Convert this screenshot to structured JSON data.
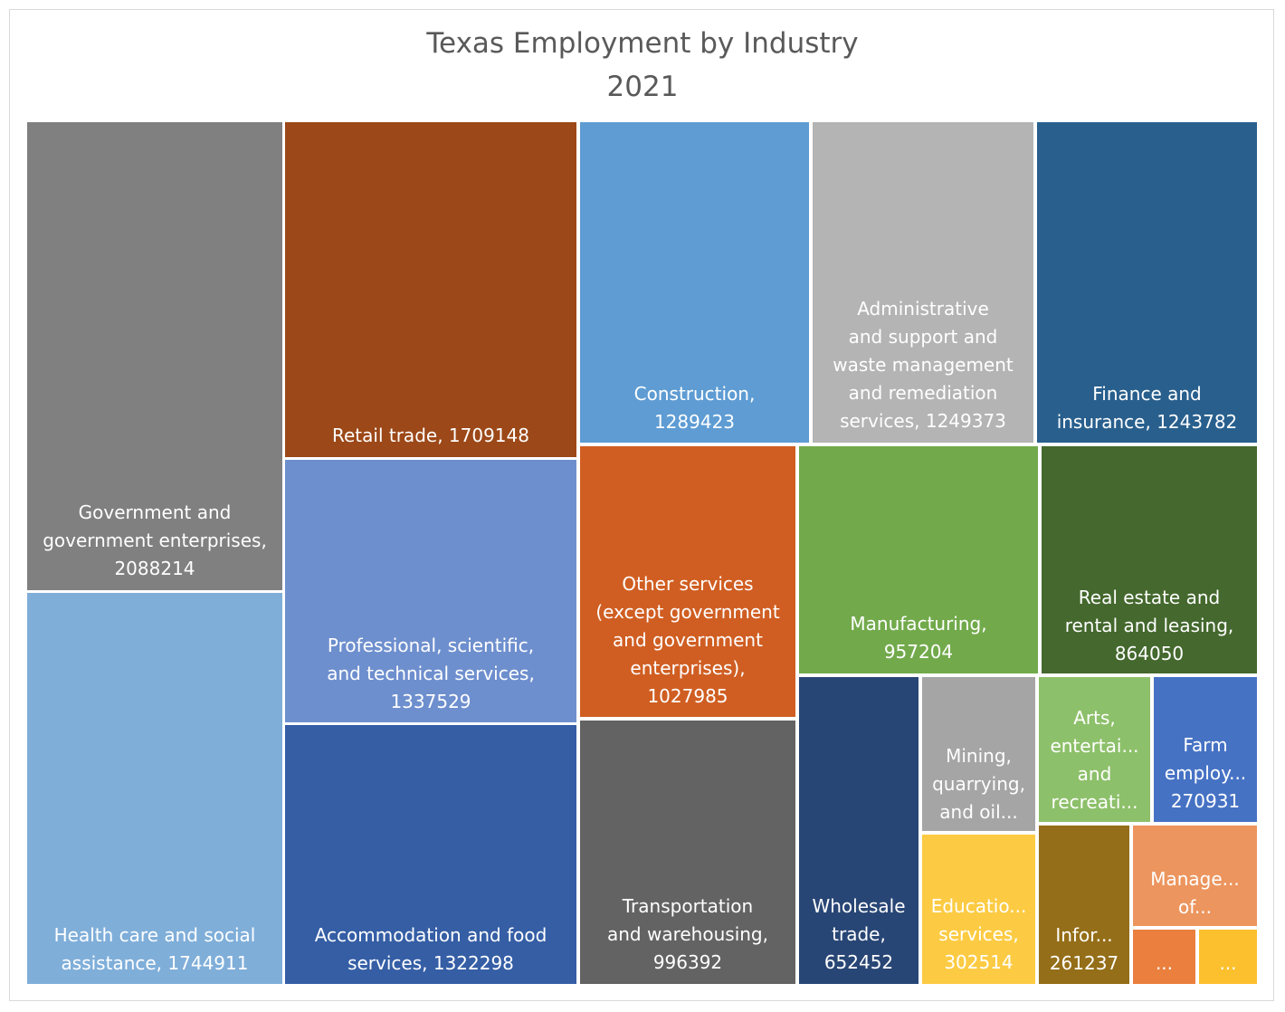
{
  "chart_data": {
    "type": "treemap",
    "title": "Texas Employment by Industry",
    "subtitle": "2021",
    "items": [
      {
        "name": "Government and government enterprises",
        "value": 2088214,
        "color": "#808080",
        "label": [
          "Government and",
          "government enterprises,",
          "2088214"
        ]
      },
      {
        "name": "Health care and social assistance",
        "value": 1744911,
        "color": "#7FAED9",
        "label": [
          "Health care and social",
          "assistance, 1744911"
        ]
      },
      {
        "name": "Retail trade",
        "value": 1709148,
        "color": "#9C4818",
        "label": [
          "Retail trade, 1709148"
        ]
      },
      {
        "name": "Professional, scientific, and technical services",
        "value": 1337529,
        "color": "#6E8FCE",
        "label": [
          "Professional, scientific,",
          "and technical services,",
          "1337529"
        ]
      },
      {
        "name": "Accommodation and food services",
        "value": 1322298,
        "color": "#355EA5",
        "label": [
          "Accommodation and food",
          "services, 1322298"
        ]
      },
      {
        "name": "Construction",
        "value": 1289423,
        "color": "#5E9CD3",
        "label": [
          "Construction,",
          "1289423"
        ]
      },
      {
        "name": "Administrative and support and waste management and remediation services",
        "value": 1249373,
        "color": "#B4B4B4",
        "label": [
          "Administrative",
          "and support and",
          "waste management",
          "and remediation",
          "services, 1249373"
        ]
      },
      {
        "name": "Finance and insurance",
        "value": 1243782,
        "color": "#285F8D",
        "label": [
          "Finance and",
          "insurance, 1243782"
        ]
      },
      {
        "name": "Other services (except government and government enterprises)",
        "value": 1027985,
        "color": "#D05E22",
        "label": [
          "Other services",
          "(except government",
          "and government",
          "enterprises),",
          "1027985"
        ]
      },
      {
        "name": "Transportation and warehousing",
        "value": 996392,
        "color": "#636363",
        "label": [
          "Transportation",
          "and warehousing,",
          "996392"
        ]
      },
      {
        "name": "Manufacturing",
        "value": 957204,
        "color": "#72AA4B",
        "label": [
          "Manufacturing,",
          "957204"
        ]
      },
      {
        "name": "Real estate and rental and leasing",
        "value": 864050,
        "color": "#44682D",
        "label": [
          "Real estate and",
          "rental and leasing,",
          "864050"
        ]
      },
      {
        "name": "Wholesale trade",
        "value": 652452,
        "color": "#284675",
        "label": [
          "Wholesale",
          "trade,",
          "652452"
        ]
      },
      {
        "name": "Mining, quarrying, and oil...",
        "value": null,
        "color": "#A5A5A5",
        "label": [
          "Mining,",
          "quarrying,",
          "and oil..."
        ]
      },
      {
        "name": "Educatio... services",
        "value": 302514,
        "color": "#FCCB43",
        "label": [
          "Educatio...",
          "services,",
          "302514"
        ]
      },
      {
        "name": "Arts, entertai... and recreati...",
        "value": null,
        "color": "#8DC06A",
        "label": [
          "Arts,",
          "entertai...",
          "and",
          "recreati..."
        ]
      },
      {
        "name": "Farm employ...",
        "value": 270931,
        "color": "#4672C4",
        "label": [
          "Farm",
          "employ...",
          "270931"
        ]
      },
      {
        "name": "Infor...",
        "value": 261237,
        "color": "#946E18",
        "label": [
          "Infor...",
          "261237"
        ]
      },
      {
        "name": "Manage... of...",
        "value": null,
        "color": "#EC955E",
        "label": [
          "Manage...",
          "of..."
        ]
      },
      {
        "name": "...",
        "value": null,
        "color": "#EA7F3E",
        "label": [
          "..."
        ]
      },
      {
        "name": "...",
        "value": null,
        "color": "#FCC02E",
        "label": [
          "..."
        ]
      }
    ]
  }
}
